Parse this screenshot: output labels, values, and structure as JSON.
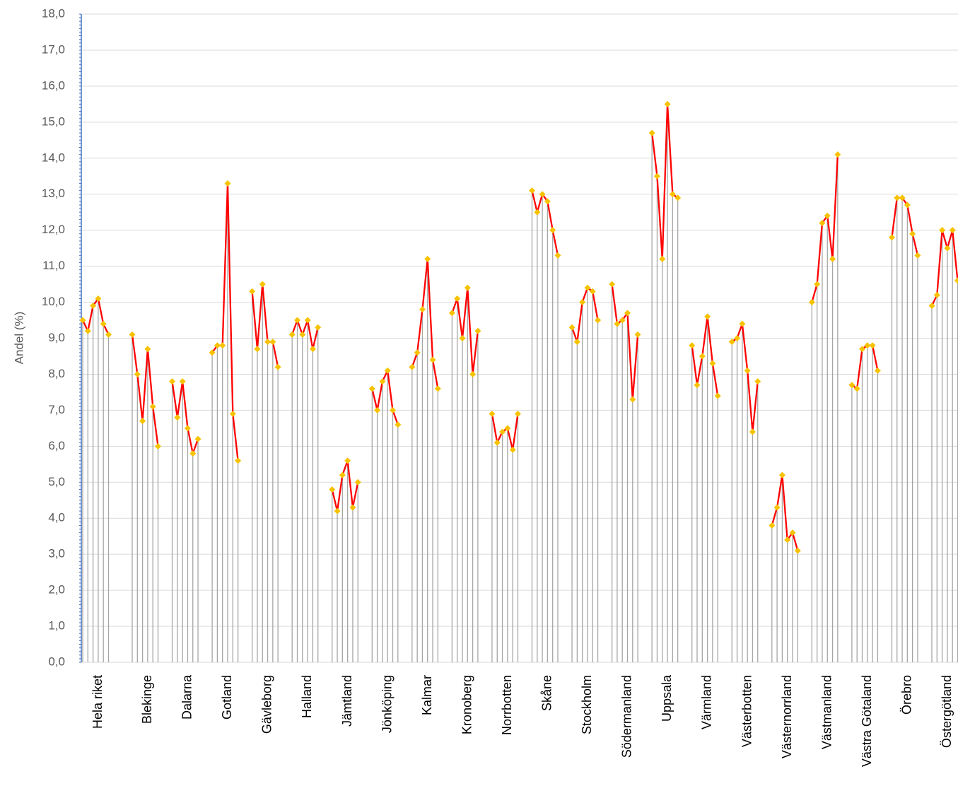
{
  "chart_data": {
    "type": "line",
    "ylabel": "Andel (%)",
    "ylim": [
      0,
      18
    ],
    "yticks": [
      {
        "value": 0,
        "label": "0,0"
      },
      {
        "value": 1,
        "label": "1,0"
      },
      {
        "value": 2,
        "label": "2,0"
      },
      {
        "value": 3,
        "label": "3,0"
      },
      {
        "value": 4,
        "label": "4,0"
      },
      {
        "value": 5,
        "label": "5,0"
      },
      {
        "value": 6,
        "label": "6,0"
      },
      {
        "value": 7,
        "label": "7,0"
      },
      {
        "value": 8,
        "label": "8,0"
      },
      {
        "value": 9,
        "label": "9,0"
      },
      {
        "value": 10,
        "label": "10,0"
      },
      {
        "value": 11,
        "label": "11,0"
      },
      {
        "value": 12,
        "label": "12,0"
      },
      {
        "value": 13,
        "label": "13,0"
      },
      {
        "value": 14,
        "label": "14,0"
      },
      {
        "value": 15,
        "label": "15,0"
      },
      {
        "value": 16,
        "label": "16,0"
      },
      {
        "value": 17,
        "label": "17,0"
      },
      {
        "value": 18,
        "label": "18,0"
      }
    ],
    "grid": true,
    "line_color": "#ff0000",
    "marker_color": "#f7c200",
    "drop_line_color": "#a6a6a6",
    "groups": [
      {
        "name": "Hela riket",
        "values": [
          9.5,
          9.2,
          9.9,
          10.1,
          9.4,
          9.1
        ]
      },
      {
        "name": "Blekinge",
        "values": [
          9.1,
          8.0,
          6.7,
          8.7,
          7.1,
          6.0
        ]
      },
      {
        "name": "Dalarna",
        "values": [
          7.8,
          6.8,
          7.8,
          6.5,
          5.8,
          6.2
        ]
      },
      {
        "name": "Gotland",
        "values": [
          8.6,
          8.8,
          8.8,
          13.3,
          6.9,
          5.6
        ]
      },
      {
        "name": "Gävleborg",
        "values": [
          10.3,
          8.7,
          10.5,
          8.9,
          8.9,
          8.2
        ]
      },
      {
        "name": "Halland",
        "values": [
          9.1,
          9.5,
          9.1,
          9.5,
          8.7,
          9.3
        ]
      },
      {
        "name": "Jämtland",
        "values": [
          4.8,
          4.2,
          5.2,
          5.6,
          4.3,
          5.0
        ]
      },
      {
        "name": "Jönköping",
        "values": [
          7.6,
          7.0,
          7.8,
          8.1,
          7.0,
          6.6
        ]
      },
      {
        "name": "Kalmar",
        "values": [
          8.2,
          8.6,
          9.8,
          11.2,
          8.4,
          7.6
        ]
      },
      {
        "name": "Kronoberg",
        "values": [
          9.7,
          10.1,
          9.0,
          10.4,
          8.0,
          9.2
        ]
      },
      {
        "name": "Norrbotten",
        "values": [
          6.9,
          6.1,
          6.4,
          6.5,
          5.9,
          6.9
        ]
      },
      {
        "name": "Skåne",
        "values": [
          13.1,
          12.5,
          13.0,
          12.8,
          12.0,
          11.3
        ]
      },
      {
        "name": "Stockholm",
        "values": [
          9.3,
          8.9,
          10.0,
          10.4,
          10.3,
          9.5
        ]
      },
      {
        "name": "Södermanland",
        "values": [
          10.5,
          9.4,
          9.5,
          9.7,
          7.3,
          9.1
        ]
      },
      {
        "name": "Uppsala",
        "values": [
          14.7,
          13.5,
          11.2,
          15.5,
          13.0,
          12.9
        ]
      },
      {
        "name": "Värmland",
        "values": [
          8.8,
          7.7,
          8.5,
          9.6,
          8.3,
          7.4
        ]
      },
      {
        "name": "Västerbotten",
        "values": [
          8.9,
          9.0,
          9.4,
          8.1,
          6.4,
          7.8
        ]
      },
      {
        "name": "Västernorrland",
        "values": [
          3.8,
          4.3,
          5.2,
          3.4,
          3.6,
          3.1
        ]
      },
      {
        "name": "Västmanland",
        "values": [
          10.0,
          10.5,
          12.2,
          12.4,
          11.2,
          14.1
        ]
      },
      {
        "name": "Västra Götaland",
        "values": [
          7.7,
          7.6,
          8.7,
          8.8,
          8.8,
          8.1
        ]
      },
      {
        "name": "Örebro",
        "values": [
          11.8,
          12.9,
          12.9,
          12.7,
          11.9,
          11.3
        ]
      },
      {
        "name": "Östergötland",
        "values": [
          9.9,
          10.2,
          12.0,
          11.5,
          12.0,
          10.6
        ]
      }
    ]
  }
}
